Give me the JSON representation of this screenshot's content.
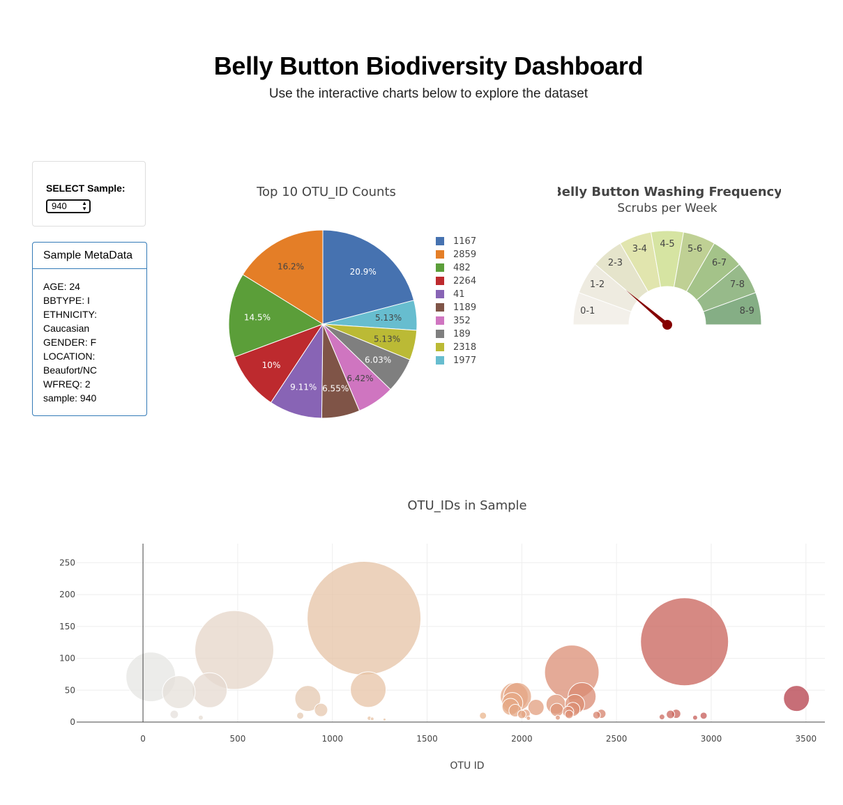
{
  "header": {
    "title": "Belly Button Biodiversity Dashboard",
    "subtitle": "Use the interactive charts below to explore the dataset"
  },
  "selector": {
    "label": "SELECT Sample:",
    "value": "940"
  },
  "metadata": {
    "title": "Sample MetaData",
    "lines": [
      "AGE: 24",
      "BBTYPE: I",
      "ETHNICITY:",
      "Caucasian",
      "GENDER: F",
      "LOCATION:",
      "Beaufort/NC",
      "WFREQ: 2",
      "sample: 940"
    ]
  },
  "chart_data": [
    {
      "type": "pie",
      "title": "Top 10 OTU_ID Counts",
      "labels": [
        "1167",
        "2859",
        "482",
        "2264",
        "41",
        "1189",
        "352",
        "189",
        "2318",
        "1977"
      ],
      "values": [
        163,
        126,
        113,
        78,
        71,
        51,
        50,
        47,
        40,
        40
      ],
      "percent_labels": [
        "20.9%",
        "16.2%",
        "14.5%",
        "10%",
        "9.11%",
        "6.55%",
        "6.42%",
        "6.03%",
        "5.13%",
        "5.13%"
      ],
      "slice_order_clockwise_from_top": [
        "1167",
        "1977",
        "2318",
        "189",
        "352",
        "1189",
        "41",
        "2264",
        "482",
        "2859"
      ],
      "colors": {
        "1167": "#4672b0",
        "2859": "#e47e27",
        "482": "#5b9e39",
        "2264": "#bd2a2e",
        "41": "#8864b5",
        "1189": "#7f5447",
        "352": "#cf75c0",
        "189": "#7f7f7f",
        "2318": "#bbba35",
        "1977": "#67bdcf"
      },
      "legend_position": "right"
    },
    {
      "type": "gauge",
      "title": "Belly Button Washing Frequency",
      "subtitle": "Scrubs per Week",
      "value": 2,
      "range": [
        0,
        9
      ],
      "sectors": [
        "0-1",
        "1-2",
        "2-3",
        "3-4",
        "4-5",
        "5-6",
        "6-7",
        "7-8",
        "8-9"
      ],
      "colors": [
        "#f3f0ea",
        "#eeebe0",
        "#e5e4cb",
        "#e1e5ae",
        "#d6e4a2",
        "#bfd094",
        "#a4c389",
        "#97ba8a",
        "#85ae85"
      ]
    },
    {
      "type": "scatter",
      "title": "OTU_IDs in Sample",
      "xlabel": "OTU ID",
      "ylabel": "",
      "xlim": [
        -350,
        3600
      ],
      "ylim": [
        0,
        280
      ],
      "x_ticks": [
        0,
        500,
        1000,
        1500,
        2000,
        2500,
        3000,
        3500
      ],
      "y_ticks": [
        0,
        50,
        100,
        150,
        200,
        250
      ],
      "grid": true,
      "points": [
        {
          "x": 41,
          "y": 71
        },
        {
          "x": 189,
          "y": 47
        },
        {
          "x": 352,
          "y": 50
        },
        {
          "x": 482,
          "y": 113
        },
        {
          "x": 165,
          "y": 12
        },
        {
          "x": 305,
          "y": 7
        },
        {
          "x": 830,
          "y": 10
        },
        {
          "x": 870,
          "y": 37
        },
        {
          "x": 940,
          "y": 19
        },
        {
          "x": 1167,
          "y": 163
        },
        {
          "x": 1189,
          "y": 51
        },
        {
          "x": 1195,
          "y": 6
        },
        {
          "x": 1210,
          "y": 5
        },
        {
          "x": 1275,
          "y": 4
        },
        {
          "x": 1795,
          "y": 10
        },
        {
          "x": 1960,
          "y": 40
        },
        {
          "x": 1977,
          "y": 40
        },
        {
          "x": 1950,
          "y": 30
        },
        {
          "x": 1940,
          "y": 24
        },
        {
          "x": 1965,
          "y": 18
        },
        {
          "x": 2000,
          "y": 12
        },
        {
          "x": 2020,
          "y": 13
        },
        {
          "x": 2035,
          "y": 6
        },
        {
          "x": 2075,
          "y": 23
        },
        {
          "x": 2180,
          "y": 28
        },
        {
          "x": 2185,
          "y": 19
        },
        {
          "x": 2190,
          "y": 7
        },
        {
          "x": 2245,
          "y": 16
        },
        {
          "x": 2250,
          "y": 12
        },
        {
          "x": 2264,
          "y": 78
        },
        {
          "x": 2270,
          "y": 20
        },
        {
          "x": 2280,
          "y": 28
        },
        {
          "x": 2318,
          "y": 40
        },
        {
          "x": 2395,
          "y": 11
        },
        {
          "x": 2420,
          "y": 13
        },
        {
          "x": 2740,
          "y": 8
        },
        {
          "x": 2785,
          "y": 12
        },
        {
          "x": 2815,
          "y": 13
        },
        {
          "x": 2859,
          "y": 126
        },
        {
          "x": 2915,
          "y": 7
        },
        {
          "x": 2960,
          "y": 10
        },
        {
          "x": 3450,
          "y": 37
        }
      ],
      "colorscale": [
        "#e6e6e6",
        "#e4c8b0",
        "#ebb990",
        "#d07060",
        "#b23a48"
      ]
    }
  ]
}
